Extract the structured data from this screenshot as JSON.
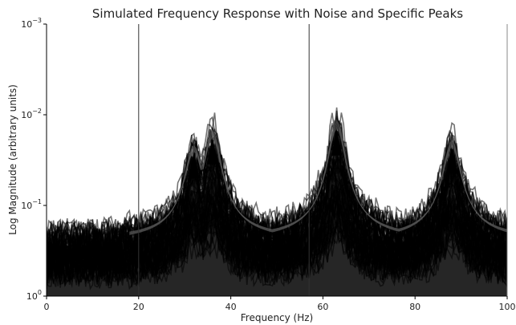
{
  "chart_data": {
    "type": "area",
    "title": "Simulated Frequency Response with Noise and Specific Peaks",
    "xlabel": "Frequency (Hz)",
    "ylabel": "Log Magnitude (arbitrary units)",
    "xlim": [
      0,
      100
    ],
    "ylim_exponent": [
      0,
      -3
    ],
    "y_scale": "log (inverted)",
    "x_ticks": [
      "0",
      "20",
      "40",
      "60",
      "80",
      "100"
    ],
    "y_ticks": [
      {
        "base": "10",
        "exp": "0"
      },
      {
        "base": "10",
        "exp": "−1"
      },
      {
        "base": "10",
        "exp": "−2"
      },
      {
        "base": "10",
        "exp": "−3"
      }
    ],
    "grid": false,
    "peaks": [
      {
        "freq": 32,
        "log_magnitude_exp": -1.6
      },
      {
        "freq": 36,
        "log_magnitude_exp": -1.75
      },
      {
        "freq": 63,
        "log_magnitude_exp": -1.85
      },
      {
        "freq": 88,
        "log_magnitude_exp": -1.65
      }
    ],
    "noise_floor_exp": -0.6,
    "line_color": "#000000",
    "envelope_color": "#555555",
    "marker_lines_x": [
      20,
      57
    ]
  }
}
